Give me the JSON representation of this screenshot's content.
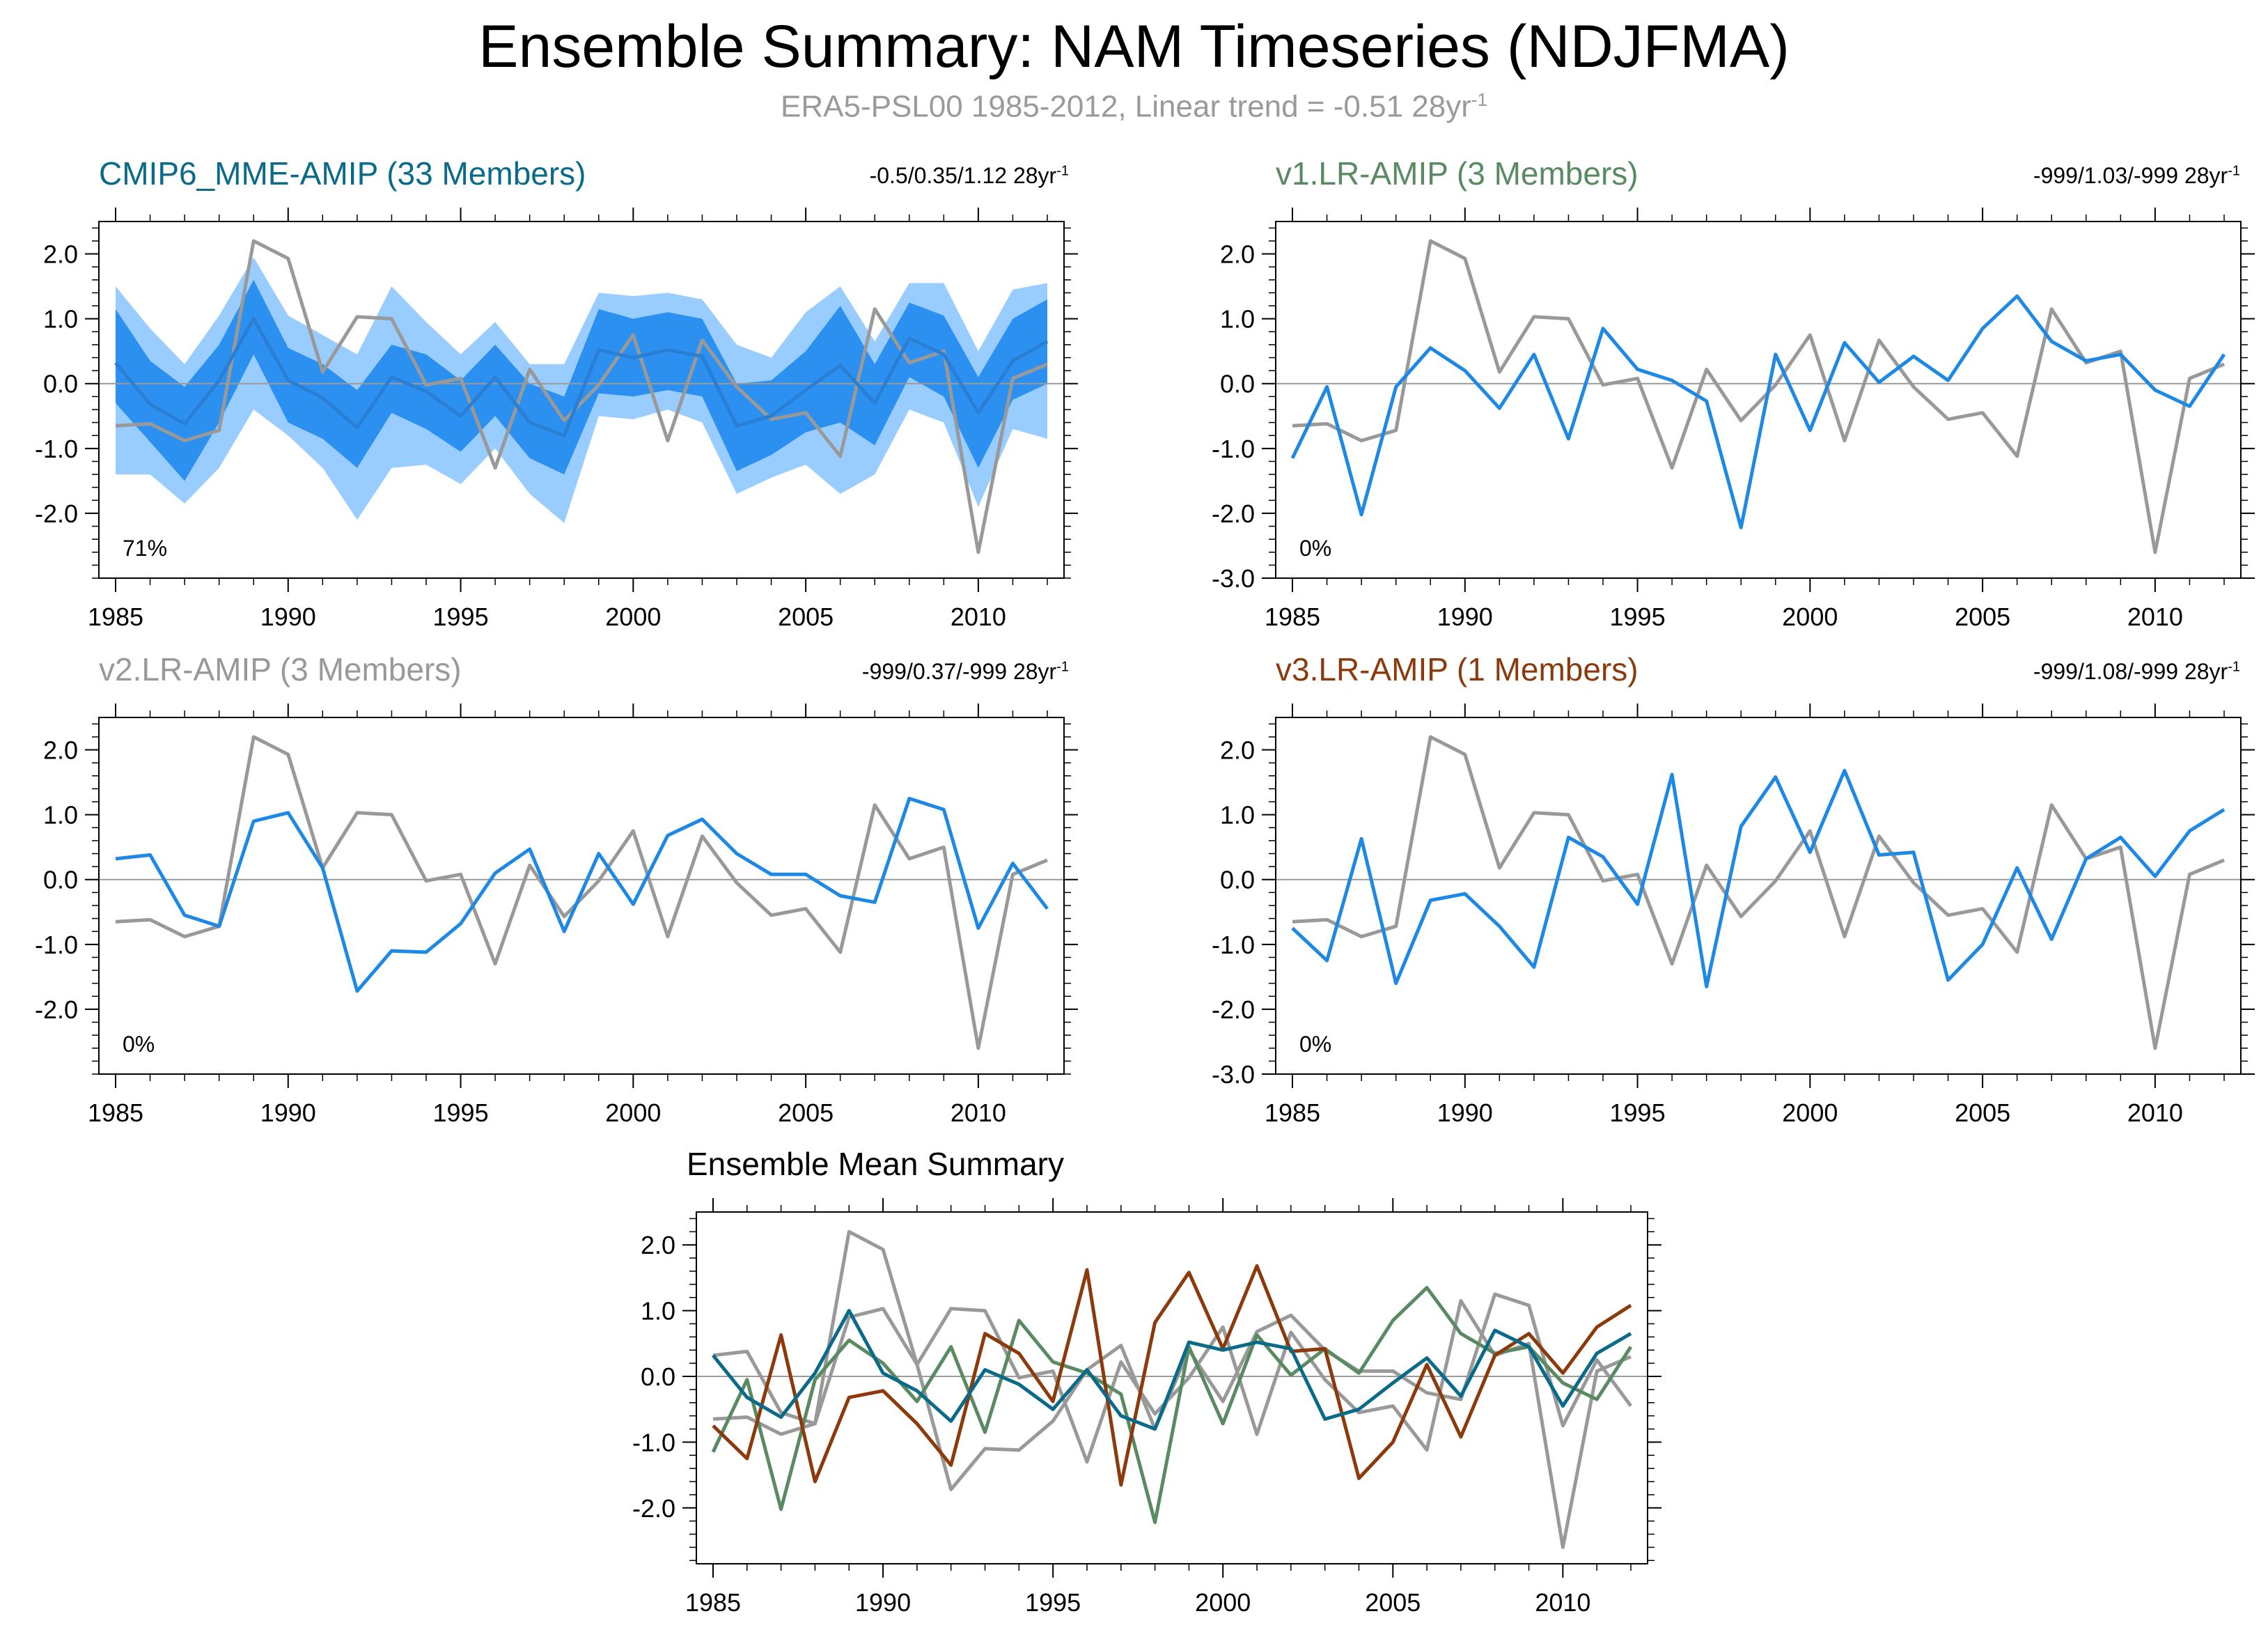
{
  "title": "Ensemble Summary: NAM Timeseries (NDJFMA)",
  "subtitle": {
    "text": "ERA5-PSL00 1985-2012, Linear trend = -0.51 28yr",
    "sup": "-1"
  },
  "colors": {
    "obs": "#999999",
    "model": "#1e88e5",
    "band_inner": "#2c90f0",
    "band_outer": "#99ccff",
    "mme": "#0a6a8a",
    "v1": "#5a8a62",
    "v2": "#999999",
    "v3": "#8c3a0c",
    "zero": "#9a9a9a"
  },
  "panels": [
    {
      "id": "p1",
      "title": "CMIP6_MME-AMIP (33 Members)",
      "title_color": "#0a6a8a",
      "stat": "-0.5/0.35/1.12 28yr",
      "stat_sup": "-1",
      "percent": "71%",
      "y_ticks": [
        "2.0",
        "1.0",
        "0.0",
        "-1.0",
        "-2.0"
      ],
      "x_ticks": [
        "1985",
        "1990",
        "1995",
        "2000",
        "2005",
        "2010"
      ]
    },
    {
      "id": "p2",
      "title": "v1.LR-AMIP (3 Members)",
      "title_color": "#5a8a62",
      "stat": "-999/1.03/-999 28yr",
      "stat_sup": "-1",
      "percent": "0%",
      "y_ticks": [
        "2.0",
        "1.0",
        "0.0",
        "-1.0",
        "-2.0",
        "-3.0"
      ],
      "x_ticks": [
        "1985",
        "1990",
        "1995",
        "2000",
        "2005",
        "2010"
      ]
    },
    {
      "id": "p3",
      "title": "v2.LR-AMIP (3 Members)",
      "title_color": "#999999",
      "stat": "-999/0.37/-999 28yr",
      "stat_sup": "-1",
      "percent": "0%",
      "y_ticks": [
        "2.0",
        "1.0",
        "0.0",
        "-1.0",
        "-2.0"
      ],
      "x_ticks": [
        "1985",
        "1990",
        "1995",
        "2000",
        "2005",
        "2010"
      ]
    },
    {
      "id": "p4",
      "title": "v3.LR-AMIP (1 Members)",
      "title_color": "#8c3a0c",
      "stat": "-999/1.08/-999 28yr",
      "stat_sup": "-1",
      "percent": "0%",
      "y_ticks": [
        "2.0",
        "1.0",
        "0.0",
        "-1.0",
        "-2.0",
        "-3.0"
      ],
      "x_ticks": [
        "1985",
        "1990",
        "1995",
        "2000",
        "2005",
        "2010"
      ]
    },
    {
      "id": "p5",
      "title": "Ensemble Mean Summary",
      "title_color": "#000000",
      "y_ticks": [
        "2.0",
        "1.0",
        "0.0",
        "-1.0",
        "-2.0"
      ],
      "x_ticks": [
        "1985",
        "1990",
        "1995",
        "2000",
        "2005",
        "2010"
      ]
    }
  ],
  "chart_data": [
    {
      "type": "line",
      "panel": "p1",
      "title": "CMIP6_MME-AMIP (33 Members)",
      "x": [
        1985,
        1986,
        1987,
        1988,
        1989,
        1990,
        1991,
        1992,
        1993,
        1994,
        1995,
        1996,
        1997,
        1998,
        1999,
        2000,
        2001,
        2002,
        2003,
        2004,
        2005,
        2006,
        2007,
        2008,
        2009,
        2010,
        2011,
        2012
      ],
      "xlim": [
        1985,
        2012
      ],
      "ylim": [
        -3.0,
        2.5
      ],
      "series": [
        {
          "name": "ERA5-PSL00",
          "values": [
            -0.65,
            -0.62,
            -0.88,
            -0.72,
            2.2,
            1.93,
            0.18,
            1.03,
            1.0,
            -0.02,
            0.08,
            -1.3,
            0.22,
            -0.57,
            -0.02,
            0.75,
            -0.88,
            0.67,
            -0.05,
            -0.55,
            -0.45,
            -1.12,
            1.15,
            0.32,
            0.5,
            -2.6,
            0.08,
            0.3
          ]
        },
        {
          "name": "Ensemble mean",
          "values": [
            0.32,
            -0.32,
            -0.62,
            0.05,
            1.0,
            0.05,
            -0.22,
            -0.68,
            0.1,
            -0.12,
            -0.5,
            0.1,
            -0.6,
            -0.8,
            0.52,
            0.4,
            0.52,
            0.42,
            -0.65,
            -0.5,
            -0.1,
            0.28,
            -0.3,
            0.7,
            0.45,
            -0.45,
            0.35,
            0.65
          ]
        },
        {
          "name": "Inner band (upper)",
          "values": [
            1.15,
            0.35,
            -0.05,
            0.6,
            1.6,
            0.55,
            0.3,
            -0.1,
            0.6,
            0.45,
            0.05,
            0.6,
            0.0,
            -0.2,
            1.15,
            1.0,
            1.1,
            1.0,
            0.0,
            0.05,
            0.5,
            1.2,
            0.3,
            1.25,
            1.05,
            0.1,
            1.0,
            1.3
          ]
        },
        {
          "name": "Inner band (lower)",
          "values": [
            -0.3,
            -0.9,
            -1.5,
            -0.6,
            0.45,
            -0.6,
            -0.85,
            -1.3,
            -0.45,
            -0.7,
            -1.05,
            -0.5,
            -1.15,
            -1.4,
            -0.15,
            -0.2,
            -0.1,
            -0.2,
            -1.35,
            -1.1,
            -0.75,
            -0.6,
            -0.95,
            0.1,
            -0.2,
            -1.3,
            -0.25,
            0.0
          ]
        },
        {
          "name": "Outer band (upper)",
          "values": [
            1.5,
            0.85,
            0.3,
            1.05,
            1.95,
            1.05,
            0.75,
            0.45,
            1.5,
            0.95,
            0.45,
            0.95,
            0.3,
            0.3,
            1.4,
            1.35,
            1.4,
            1.3,
            0.6,
            0.4,
            1.1,
            1.5,
            0.65,
            1.55,
            1.55,
            0.5,
            1.45,
            1.55
          ]
        },
        {
          "name": "Outer band (lower)",
          "values": [
            -1.4,
            -1.4,
            -1.85,
            -1.3,
            -0.4,
            -0.8,
            -1.3,
            -2.1,
            -1.3,
            -1.25,
            -1.55,
            -1.0,
            -1.7,
            -2.15,
            -0.5,
            -0.55,
            -0.4,
            -0.6,
            -1.7,
            -1.45,
            -1.25,
            -1.7,
            -1.4,
            -0.4,
            -0.6,
            -1.9,
            -0.7,
            -0.85
          ]
        }
      ]
    },
    {
      "type": "line",
      "panel": "p2",
      "title": "v1.LR-AMIP (3 Members)",
      "x": [
        1985,
        1986,
        1987,
        1988,
        1989,
        1990,
        1991,
        1992,
        1993,
        1994,
        1995,
        1996,
        1997,
        1998,
        1999,
        2000,
        2001,
        2002,
        2003,
        2004,
        2005,
        2006,
        2007,
        2008,
        2009,
        2010,
        2011,
        2012
      ],
      "xlim": [
        1985,
        2012
      ],
      "ylim": [
        -3.0,
        2.5
      ],
      "series": [
        {
          "name": "ERA5-PSL00",
          "values": [
            -0.65,
            -0.62,
            -0.88,
            -0.72,
            2.2,
            1.93,
            0.18,
            1.03,
            1.0,
            -0.02,
            0.08,
            -1.3,
            0.22,
            -0.57,
            -0.02,
            0.75,
            -0.88,
            0.67,
            -0.05,
            -0.55,
            -0.45,
            -1.12,
            1.15,
            0.32,
            0.5,
            -2.6,
            0.08,
            0.3
          ]
        },
        {
          "name": "v1.LR-AMIP",
          "values": [
            -1.15,
            -0.05,
            -2.02,
            -0.05,
            0.55,
            0.2,
            -0.38,
            0.45,
            -0.85,
            0.85,
            0.22,
            0.05,
            -0.27,
            -2.22,
            0.45,
            -0.72,
            0.63,
            0.02,
            0.42,
            0.05,
            0.85,
            1.35,
            0.65,
            0.35,
            0.45,
            -0.1,
            -0.35,
            0.45
          ]
        }
      ]
    },
    {
      "type": "line",
      "panel": "p3",
      "title": "v2.LR-AMIP (3 Members)",
      "x": [
        1985,
        1986,
        1987,
        1988,
        1989,
        1990,
        1991,
        1992,
        1993,
        1994,
        1995,
        1996,
        1997,
        1998,
        1999,
        2000,
        2001,
        2002,
        2003,
        2004,
        2005,
        2006,
        2007,
        2008,
        2009,
        2010,
        2011,
        2012
      ],
      "xlim": [
        1985,
        2012
      ],
      "ylim": [
        -3.0,
        2.5
      ],
      "series": [
        {
          "name": "ERA5-PSL00",
          "values": [
            -0.65,
            -0.62,
            -0.88,
            -0.72,
            2.2,
            1.93,
            0.18,
            1.03,
            1.0,
            -0.02,
            0.08,
            -1.3,
            0.22,
            -0.57,
            -0.02,
            0.75,
            -0.88,
            0.67,
            -0.05,
            -0.55,
            -0.45,
            -1.12,
            1.15,
            0.32,
            0.5,
            -2.6,
            0.08,
            0.3
          ]
        },
        {
          "name": "v2.LR-AMIP",
          "values": [
            0.32,
            0.38,
            -0.55,
            -0.72,
            0.9,
            1.03,
            0.18,
            -1.72,
            -1.1,
            -1.12,
            -0.68,
            0.1,
            0.47,
            -0.8,
            0.4,
            -0.38,
            0.68,
            0.93,
            0.4,
            0.08,
            0.08,
            -0.25,
            -0.35,
            1.25,
            1.08,
            -0.75,
            0.25,
            -0.45
          ]
        }
      ]
    },
    {
      "type": "line",
      "panel": "p4",
      "title": "v3.LR-AMIP (1 Members)",
      "x": [
        1985,
        1986,
        1987,
        1988,
        1989,
        1990,
        1991,
        1992,
        1993,
        1994,
        1995,
        1996,
        1997,
        1998,
        1999,
        2000,
        2001,
        2002,
        2003,
        2004,
        2005,
        2006,
        2007,
        2008,
        2009,
        2010,
        2011,
        2012
      ],
      "xlim": [
        1985,
        2012
      ],
      "ylim": [
        -3.0,
        2.5
      ],
      "series": [
        {
          "name": "ERA5-PSL00",
          "values": [
            -0.65,
            -0.62,
            -0.88,
            -0.72,
            2.2,
            1.93,
            0.18,
            1.03,
            1.0,
            -0.02,
            0.08,
            -1.3,
            0.22,
            -0.57,
            -0.02,
            0.75,
            -0.88,
            0.67,
            -0.05,
            -0.55,
            -0.45,
            -1.12,
            1.15,
            0.32,
            0.5,
            -2.6,
            0.08,
            0.3
          ]
        },
        {
          "name": "v3.LR-AMIP",
          "values": [
            -0.75,
            -1.25,
            0.63,
            -1.6,
            -0.32,
            -0.22,
            -0.72,
            -1.35,
            0.65,
            0.35,
            -0.38,
            1.62,
            -1.65,
            0.82,
            1.58,
            0.42,
            1.68,
            0.38,
            0.42,
            -1.55,
            -1.0,
            0.18,
            -0.92,
            0.32,
            0.65,
            0.05,
            0.75,
            1.08
          ]
        }
      ]
    },
    {
      "type": "line",
      "panel": "p5",
      "title": "Ensemble Mean Summary",
      "x": [
        1985,
        1986,
        1987,
        1988,
        1989,
        1990,
        1991,
        1992,
        1993,
        1994,
        1995,
        1996,
        1997,
        1998,
        1999,
        2000,
        2001,
        2002,
        2003,
        2004,
        2005,
        2006,
        2007,
        2008,
        2009,
        2010,
        2011,
        2012
      ],
      "xlim": [
        1985,
        2012
      ],
      "ylim": [
        -2.85,
        2.5
      ],
      "series": [
        {
          "name": "ERA5-PSL00",
          "values": [
            -0.65,
            -0.62,
            -0.88,
            -0.72,
            2.2,
            1.93,
            0.18,
            1.03,
            1.0,
            -0.02,
            0.08,
            -1.3,
            0.22,
            -0.57,
            -0.02,
            0.75,
            -0.88,
            0.67,
            -0.05,
            -0.55,
            -0.45,
            -1.12,
            1.15,
            0.32,
            0.5,
            -2.6,
            0.08,
            0.3
          ]
        },
        {
          "name": "v2.LR-AMIP",
          "values": [
            0.32,
            0.38,
            -0.55,
            -0.72,
            0.9,
            1.03,
            0.18,
            -1.72,
            -1.1,
            -1.12,
            -0.68,
            0.1,
            0.47,
            -0.8,
            0.4,
            -0.38,
            0.68,
            0.93,
            0.4,
            0.08,
            0.08,
            -0.25,
            -0.35,
            1.25,
            1.08,
            -0.75,
            0.25,
            -0.45
          ]
        },
        {
          "name": "v1.LR-AMIP",
          "values": [
            -1.15,
            -0.05,
            -2.02,
            -0.05,
            0.55,
            0.2,
            -0.38,
            0.45,
            -0.85,
            0.85,
            0.22,
            0.05,
            -0.27,
            -2.22,
            0.45,
            -0.72,
            0.63,
            0.02,
            0.42,
            0.05,
            0.85,
            1.35,
            0.65,
            0.35,
            0.45,
            -0.1,
            -0.35,
            0.45
          ]
        },
        {
          "name": "v3.LR-AMIP",
          "values": [
            -0.75,
            -1.25,
            0.63,
            -1.6,
            -0.32,
            -0.22,
            -0.72,
            -1.35,
            0.65,
            0.35,
            -0.38,
            1.62,
            -1.65,
            0.82,
            1.58,
            0.42,
            1.68,
            0.38,
            0.42,
            -1.55,
            -1.0,
            0.18,
            -0.92,
            0.32,
            0.65,
            0.05,
            0.75,
            1.08
          ]
        },
        {
          "name": "CMIP6_MME-AMIP",
          "values": [
            0.32,
            -0.32,
            -0.62,
            0.05,
            1.0,
            0.05,
            -0.22,
            -0.68,
            0.1,
            -0.12,
            -0.5,
            0.1,
            -0.6,
            -0.8,
            0.52,
            0.4,
            0.52,
            0.42,
            -0.65,
            -0.5,
            -0.1,
            0.28,
            -0.3,
            0.7,
            0.45,
            -0.45,
            0.35,
            0.65
          ]
        }
      ]
    }
  ]
}
